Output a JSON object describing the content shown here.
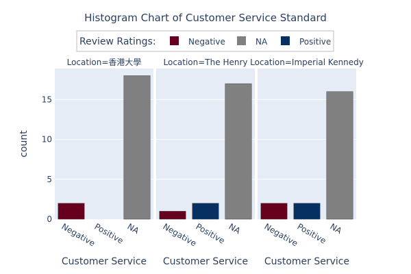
{
  "chart_data": {
    "type": "bar",
    "title": "Histogram Chart of Customer Service Standard",
    "legend": {
      "title": "Review Ratings:",
      "placement": "top-center",
      "entries": [
        {
          "name": "Negative",
          "color": "#67001f"
        },
        {
          "name": "NA",
          "color": "#808080"
        },
        {
          "name": "Positive",
          "color": "#053061"
        }
      ]
    },
    "xlabel": "Customer Service",
    "ylabel": "count",
    "ylim": [
      0,
      18.9
    ],
    "yticks": [
      0,
      5,
      10,
      15
    ],
    "grid": true,
    "facets": [
      {
        "title": "Location=香港大學",
        "categories": [
          "Negative",
          "Positive",
          "NA"
        ],
        "series": [
          {
            "name": "Negative",
            "category": "Negative",
            "value": 2
          },
          {
            "name": "NA",
            "category": "NA",
            "value": 18
          }
        ]
      },
      {
        "title": "Location=The Henry",
        "categories": [
          "Negative",
          "Positive",
          "NA"
        ],
        "series": [
          {
            "name": "Negative",
            "category": "Negative",
            "value": 1
          },
          {
            "name": "Positive",
            "category": "Positive",
            "value": 2
          },
          {
            "name": "NA",
            "category": "NA",
            "value": 17
          }
        ]
      },
      {
        "title": "Location=Imperial Kennedy",
        "categories": [
          "Negative",
          "Positive",
          "NA"
        ],
        "series": [
          {
            "name": "Negative",
            "category": "Negative",
            "value": 2
          },
          {
            "name": "Positive",
            "category": "Positive",
            "value": 2
          },
          {
            "name": "NA",
            "category": "NA",
            "value": 16
          }
        ]
      }
    ]
  }
}
